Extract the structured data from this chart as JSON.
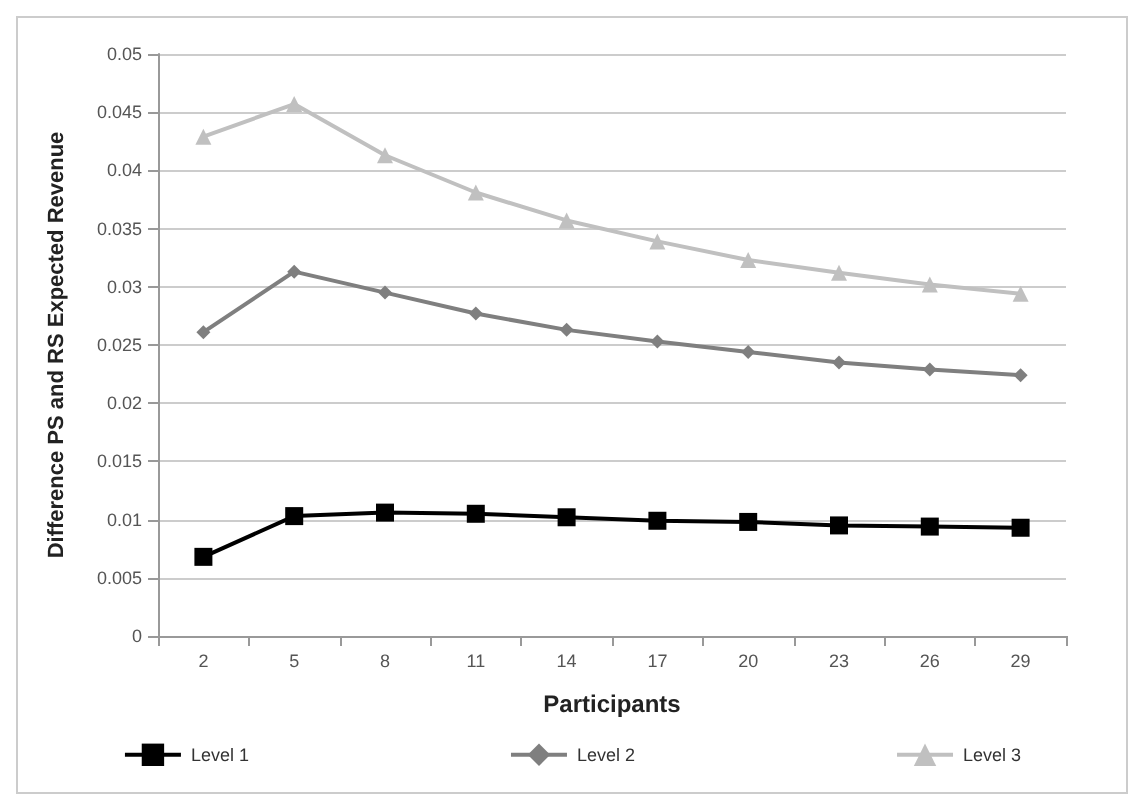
{
  "chart_data": {
    "type": "line",
    "xlabel": "Participants",
    "ylabel": "Difference PS and RS Expected Revenue",
    "categories": [
      "2",
      "5",
      "8",
      "11",
      "14",
      "17",
      "20",
      "23",
      "26",
      "29"
    ],
    "series": [
      {
        "name": "Level 1",
        "color": "#000000",
        "marker": "square",
        "values": [
          0.0068,
          0.0103,
          0.0106,
          0.0105,
          0.0102,
          0.0099,
          0.0098,
          0.0095,
          0.0094,
          0.0093
        ]
      },
      {
        "name": "Level 2",
        "color": "#7f7f7f",
        "marker": "diamond",
        "values": [
          0.0261,
          0.0313,
          0.0295,
          0.0277,
          0.0263,
          0.0253,
          0.0244,
          0.0235,
          0.0229,
          0.0224
        ]
      },
      {
        "name": "Level 3",
        "color": "#c0c0c0",
        "marker": "triangle",
        "values": [
          0.0429,
          0.0457,
          0.0413,
          0.0381,
          0.0357,
          0.0339,
          0.0323,
          0.0312,
          0.0302,
          0.0294
        ]
      }
    ],
    "ylim": [
      0,
      0.05
    ],
    "yticks": [
      0,
      0.005,
      0.01,
      0.015,
      0.02,
      0.025,
      0.03,
      0.035,
      0.04,
      0.045,
      0.05
    ],
    "grid": "y",
    "legend": "bottom",
    "line_style": "solid"
  }
}
